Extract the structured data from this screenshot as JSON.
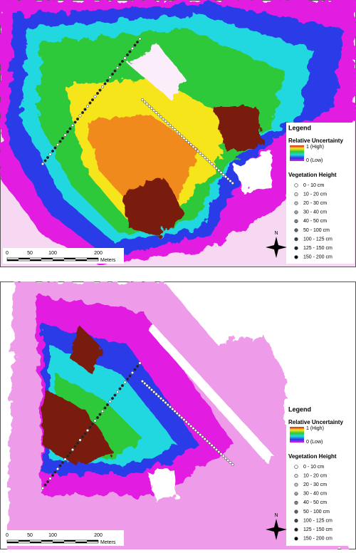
{
  "panels": [
    {
      "legend": {
        "title": "Legend",
        "uncertainty": {
          "title": "Relative Uncertainty",
          "high": "1 (High)",
          "low": "0 (Low)"
        },
        "vegetation": {
          "title": "Vegetation Height",
          "classes": [
            "0 - 10 cm",
            "10 - 20 cm",
            "20 - 30 cm",
            "30 - 40 cm",
            "40 - 50 cm",
            "50 - 100 cm",
            "100 - 125 cm",
            "125 - 150 cm",
            "150 - 200 cm"
          ]
        }
      },
      "scale": {
        "ticks": [
          0,
          50,
          100,
          200
        ],
        "unit": "Meters"
      },
      "north": "N"
    },
    {
      "legend": {
        "title": "Legend",
        "uncertainty": {
          "title": "Relative Uncertainty",
          "high": "1 (High)",
          "low": "0 (Low)"
        },
        "vegetation": {
          "title": "Vegetation Height",
          "classes": [
            "0 - 10 cm",
            "10 - 20 cm",
            "20 - 30 cm",
            "30 - 40 cm",
            "40 - 50 cm",
            "50 - 100 cm",
            "100 - 125 cm",
            "125 - 150 cm",
            "150 - 200 cm"
          ]
        }
      },
      "scale": {
        "ticks": [
          0,
          50,
          100,
          200
        ],
        "unit": "Meters"
      },
      "north": "N"
    }
  ]
}
